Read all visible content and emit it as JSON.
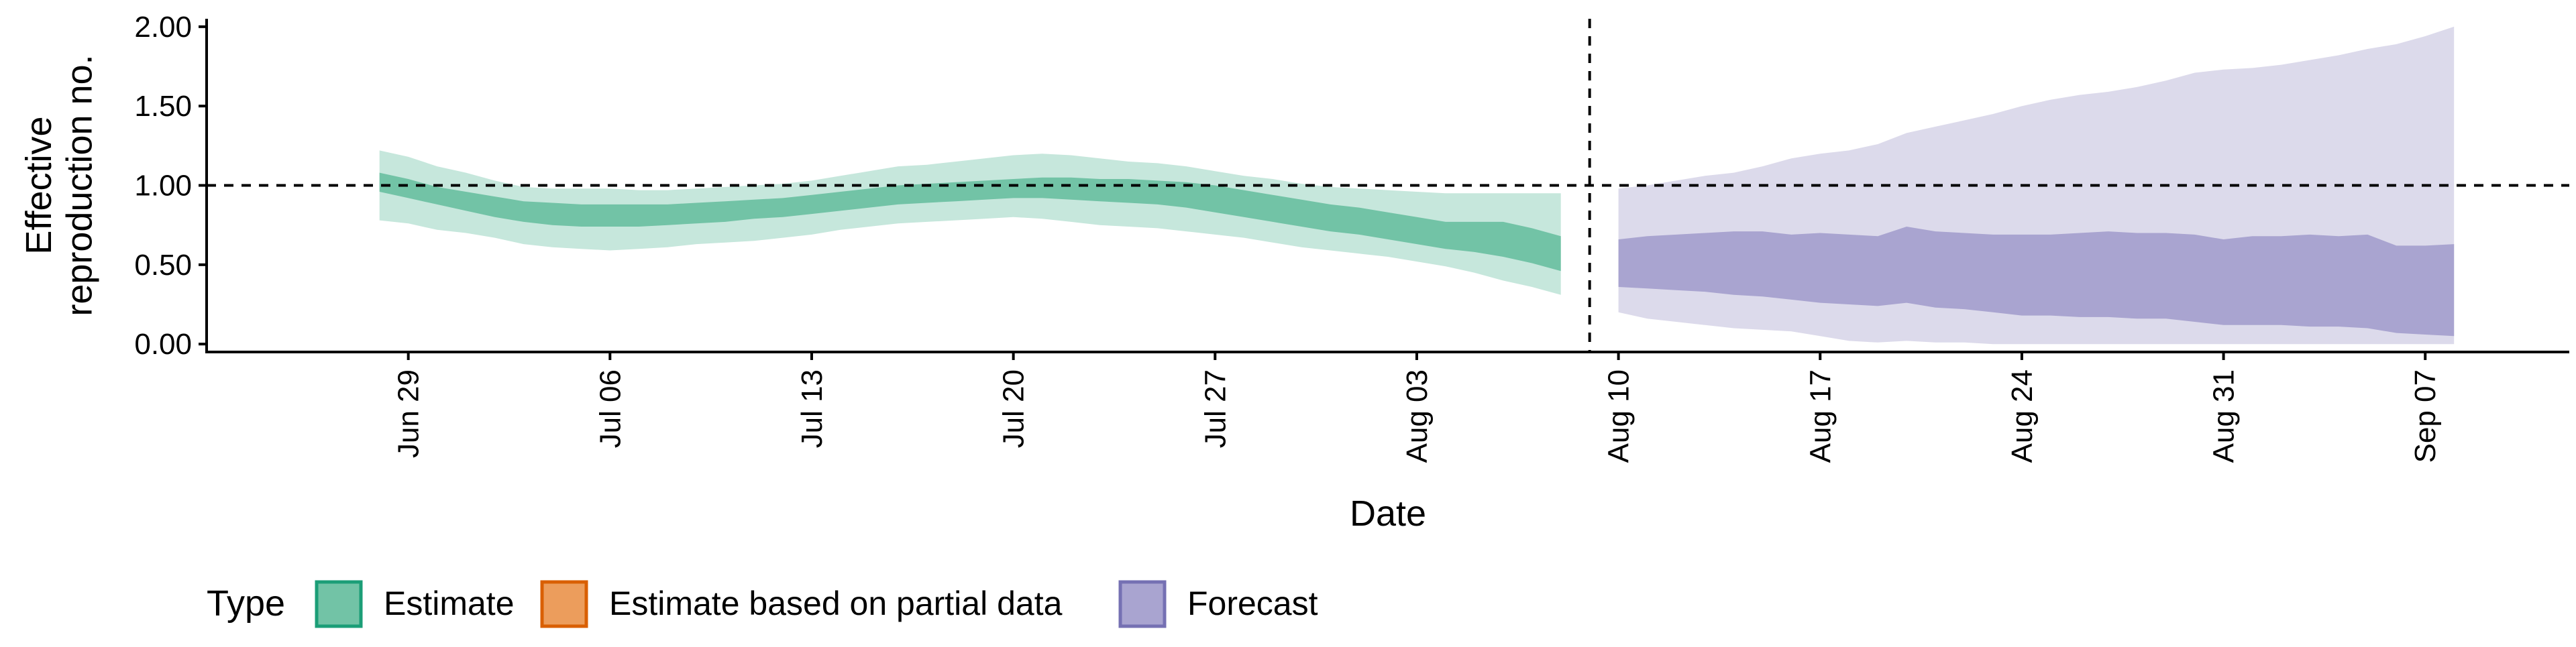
{
  "chart_data": {
    "type": "area",
    "xlabel": "Date",
    "ylabel": "Effective\nreproduction no.",
    "ylim": [
      -0.05,
      2.05
    ],
    "yticks": [
      "0.00",
      "0.50",
      "1.00",
      "1.50",
      "2.00"
    ],
    "ytick_values": [
      0.0,
      0.5,
      1.0,
      1.5,
      2.0
    ],
    "xlim": [
      "2020-06-22",
      "2020-09-12"
    ],
    "xticks": [
      "Jun 29",
      "Jul 06",
      "Jul 13",
      "Jul 20",
      "Jul 27",
      "Aug 03",
      "Aug 10",
      "Aug 17",
      "Aug 24",
      "Aug 31",
      "Sep 07"
    ],
    "xtick_dates": [
      "2020-06-29",
      "2020-07-06",
      "2020-07-13",
      "2020-07-20",
      "2020-07-27",
      "2020-08-03",
      "2020-08-10",
      "2020-08-17",
      "2020-08-24",
      "2020-08-31",
      "2020-09-07"
    ],
    "reference_line_y": 1.0,
    "vertical_line_date": "2020-08-09",
    "grid": false,
    "legend": {
      "title": "Type",
      "position": "bottom",
      "entries": [
        {
          "label": "Estimate",
          "fill": "#72c3a6",
          "stroke": "#1b9e77"
        },
        {
          "label": "Estimate based on partial data",
          "fill": "#ec9d5c",
          "stroke": "#d95f02"
        },
        {
          "label": "Forecast",
          "fill": "#a9a4d0",
          "stroke": "#7570b3"
        }
      ]
    },
    "series": [
      {
        "name": "Estimate",
        "color_inner": "#72c3a6",
        "color_outer": "#c6e7dc",
        "dates": [
          "2020-06-28",
          "2020-06-29",
          "2020-06-30",
          "2020-07-01",
          "2020-07-02",
          "2020-07-03",
          "2020-07-04",
          "2020-07-05",
          "2020-07-06",
          "2020-07-07",
          "2020-07-08",
          "2020-07-09",
          "2020-07-10",
          "2020-07-11",
          "2020-07-12",
          "2020-07-13",
          "2020-07-14",
          "2020-07-15",
          "2020-07-16",
          "2020-07-17",
          "2020-07-18",
          "2020-07-19",
          "2020-07-20",
          "2020-07-21",
          "2020-07-22",
          "2020-07-23",
          "2020-07-24",
          "2020-07-25",
          "2020-07-26",
          "2020-07-27",
          "2020-07-28",
          "2020-07-29",
          "2020-07-30",
          "2020-07-31",
          "2020-08-01",
          "2020-08-02",
          "2020-08-03",
          "2020-08-04",
          "2020-08-05",
          "2020-08-06",
          "2020-08-07",
          "2020-08-08"
        ],
        "lower90": [
          0.78,
          0.76,
          0.72,
          0.7,
          0.67,
          0.63,
          0.61,
          0.6,
          0.59,
          0.6,
          0.61,
          0.63,
          0.64,
          0.65,
          0.67,
          0.69,
          0.72,
          0.74,
          0.76,
          0.77,
          0.78,
          0.79,
          0.8,
          0.79,
          0.77,
          0.75,
          0.74,
          0.73,
          0.71,
          0.69,
          0.67,
          0.64,
          0.61,
          0.59,
          0.57,
          0.55,
          0.52,
          0.49,
          0.45,
          0.4,
          0.36,
          0.31
        ],
        "upper90": [
          1.22,
          1.18,
          1.12,
          1.08,
          1.03,
          0.99,
          0.98,
          0.98,
          0.98,
          0.97,
          0.97,
          0.98,
          0.99,
          1.0,
          1.01,
          1.03,
          1.06,
          1.09,
          1.12,
          1.13,
          1.15,
          1.17,
          1.19,
          1.2,
          1.19,
          1.17,
          1.15,
          1.14,
          1.12,
          1.09,
          1.06,
          1.04,
          1.01,
          0.99,
          0.98,
          0.97,
          0.96,
          0.95,
          0.95,
          0.95,
          0.95,
          0.95
        ],
        "lower50": [
          0.96,
          0.92,
          0.88,
          0.84,
          0.8,
          0.77,
          0.75,
          0.74,
          0.74,
          0.74,
          0.75,
          0.76,
          0.77,
          0.79,
          0.8,
          0.82,
          0.84,
          0.86,
          0.88,
          0.89,
          0.9,
          0.91,
          0.92,
          0.92,
          0.91,
          0.9,
          0.89,
          0.88,
          0.86,
          0.83,
          0.8,
          0.77,
          0.74,
          0.71,
          0.69,
          0.66,
          0.63,
          0.6,
          0.58,
          0.55,
          0.51,
          0.46
        ],
        "upper50": [
          1.08,
          1.04,
          0.99,
          0.96,
          0.93,
          0.9,
          0.89,
          0.88,
          0.88,
          0.88,
          0.88,
          0.89,
          0.9,
          0.91,
          0.92,
          0.94,
          0.96,
          0.98,
          1.0,
          1.01,
          1.02,
          1.03,
          1.04,
          1.05,
          1.05,
          1.04,
          1.04,
          1.03,
          1.02,
          1.0,
          0.97,
          0.94,
          0.91,
          0.88,
          0.86,
          0.83,
          0.8,
          0.77,
          0.77,
          0.77,
          0.73,
          0.68
        ]
      },
      {
        "name": "Forecast",
        "color_inner": "#a9a4d0",
        "color_outer": "#dcdaeb",
        "dates": [
          "2020-08-10",
          "2020-08-11",
          "2020-08-12",
          "2020-08-13",
          "2020-08-14",
          "2020-08-15",
          "2020-08-16",
          "2020-08-17",
          "2020-08-18",
          "2020-08-19",
          "2020-08-20",
          "2020-08-21",
          "2020-08-22",
          "2020-08-23",
          "2020-08-24",
          "2020-08-25",
          "2020-08-26",
          "2020-08-27",
          "2020-08-28",
          "2020-08-29",
          "2020-08-30",
          "2020-08-31",
          "2020-09-01",
          "2020-09-02",
          "2020-09-03",
          "2020-09-04",
          "2020-09-05",
          "2020-09-06",
          "2020-09-07",
          "2020-09-08"
        ],
        "lower90": [
          0.2,
          0.16,
          0.14,
          0.12,
          0.1,
          0.09,
          0.08,
          0.05,
          0.02,
          0.01,
          0.02,
          0.01,
          0.01,
          0.0,
          0.0,
          0.0,
          0.0,
          0.0,
          0.0,
          0.0,
          0.0,
          0.0,
          0.0,
          0.0,
          0.0,
          0.0,
          0.0,
          0.0,
          0.0,
          0.0
        ],
        "upper90": [
          0.98,
          1.0,
          1.03,
          1.06,
          1.08,
          1.12,
          1.17,
          1.2,
          1.22,
          1.26,
          1.33,
          1.37,
          1.41,
          1.45,
          1.5,
          1.54,
          1.57,
          1.59,
          1.62,
          1.66,
          1.71,
          1.73,
          1.74,
          1.76,
          1.79,
          1.82,
          1.86,
          1.89,
          1.94,
          2.0
        ],
        "lower50": [
          0.36,
          0.35,
          0.34,
          0.33,
          0.31,
          0.3,
          0.28,
          0.26,
          0.25,
          0.24,
          0.26,
          0.23,
          0.22,
          0.2,
          0.18,
          0.18,
          0.17,
          0.17,
          0.16,
          0.16,
          0.14,
          0.12,
          0.12,
          0.12,
          0.11,
          0.11,
          0.1,
          0.07,
          0.06,
          0.05
        ],
        "upper50": [
          0.66,
          0.68,
          0.69,
          0.7,
          0.71,
          0.71,
          0.69,
          0.7,
          0.69,
          0.68,
          0.74,
          0.71,
          0.7,
          0.69,
          0.69,
          0.69,
          0.7,
          0.71,
          0.7,
          0.7,
          0.69,
          0.66,
          0.68,
          0.68,
          0.69,
          0.68,
          0.69,
          0.62,
          0.62,
          0.63
        ]
      }
    ]
  }
}
